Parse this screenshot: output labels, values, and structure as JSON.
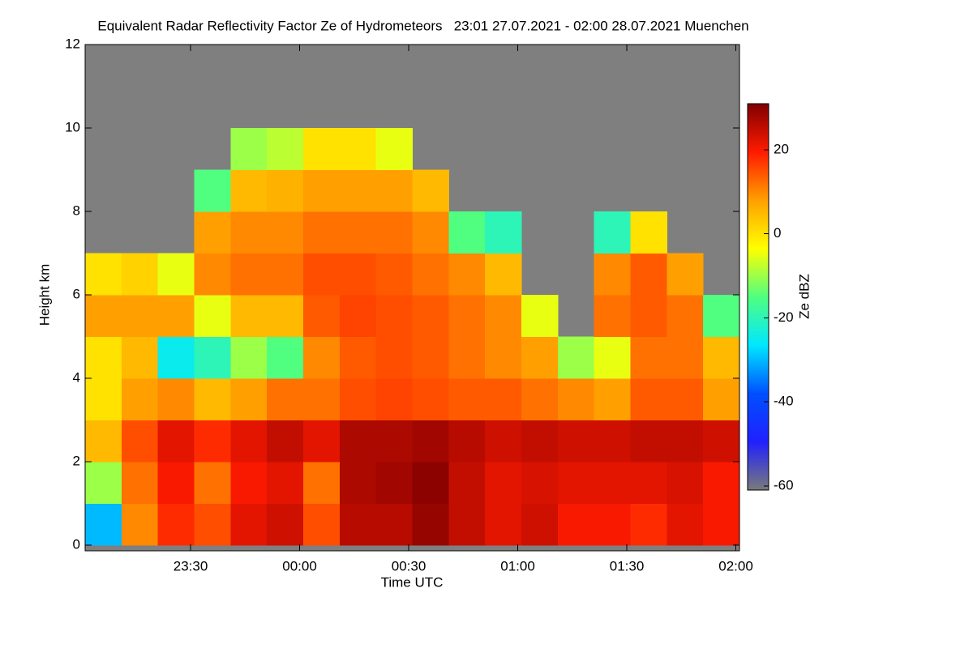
{
  "chart_data": {
    "type": "heatmap",
    "title": "Equivalent Radar Reflectivity Factor Ze of Hydrometeors   23:01 27.07.2021 - 02:00 28.07.2021 Muenchen",
    "x_label": "Time UTC",
    "y_label": "Height km",
    "colorbar_label": "Ze dBZ",
    "xlim": [
      1,
      181
    ],
    "xticks": [
      {
        "value": 30,
        "label": "23:30"
      },
      {
        "value": 60,
        "label": "00:00"
      },
      {
        "value": 90,
        "label": "00:30"
      },
      {
        "value": 120,
        "label": "01:00"
      },
      {
        "value": 150,
        "label": "01:30"
      },
      {
        "value": 180,
        "label": "02:00"
      }
    ],
    "ylim": [
      -0.14,
      12
    ],
    "yticks": [
      0,
      2,
      4,
      6,
      8,
      10,
      12
    ],
    "zlim": [
      -61,
      31
    ],
    "zticks": [
      -60,
      -40,
      -20,
      0,
      20
    ],
    "colormap": [
      "#7a7a7a",
      "#2020ff",
      "#0050ff",
      "#00e8ff",
      "#50ff80",
      "#ffff00",
      "#ffa000",
      "#ff1a00",
      "#800000"
    ],
    "background": "#7f7f7f",
    "x_bins": [
      1,
      11,
      21,
      31,
      41,
      51,
      61,
      71,
      81,
      91,
      101,
      111,
      121,
      131,
      141,
      151,
      161,
      171,
      181
    ],
    "y_bins": [
      0,
      1,
      2,
      3,
      4,
      5,
      6,
      7,
      8,
      9,
      10,
      11
    ],
    "values": [
      [
        -30,
        -10,
        5,
        0,
        0,
        8,
        0,
        null,
        null,
        null,
        null
      ],
      [
        10,
        12,
        15,
        8,
        5,
        8,
        2,
        null,
        null,
        null,
        null
      ],
      [
        18,
        20,
        22,
        10,
        -25,
        8,
        -5,
        null,
        null,
        null,
        null
      ],
      [
        15,
        12,
        18,
        5,
        -20,
        -5,
        10,
        8,
        -15,
        null,
        null
      ],
      [
        22,
        20,
        22,
        8,
        -10,
        5,
        12,
        10,
        5,
        -10,
        null
      ],
      [
        24,
        22,
        25,
        12,
        -15,
        5,
        12,
        10,
        6,
        -8,
        null
      ],
      [
        15,
        12,
        22,
        12,
        10,
        14,
        15,
        12,
        8,
        0,
        null
      ],
      [
        26,
        27,
        27,
        15,
        14,
        16,
        15,
        12,
        8,
        0,
        null
      ],
      [
        26,
        28,
        27,
        16,
        15,
        15,
        14,
        12,
        8,
        -5,
        null
      ],
      [
        29,
        30,
        28,
        15,
        14,
        14,
        12,
        10,
        5,
        null,
        null
      ],
      [
        25,
        25,
        26,
        14,
        12,
        12,
        10,
        -15,
        null,
        null,
        null
      ],
      [
        22,
        22,
        24,
        14,
        10,
        10,
        5,
        -20,
        null,
        null,
        null
      ],
      [
        24,
        23,
        25,
        12,
        8,
        -5,
        null,
        null,
        null,
        null,
        null
      ],
      [
        20,
        22,
        24,
        10,
        -10,
        null,
        null,
        null,
        null,
        null,
        null
      ],
      [
        20,
        22,
        24,
        8,
        -5,
        12,
        10,
        -20,
        null,
        null,
        null
      ],
      [
        18,
        22,
        25,
        14,
        12,
        14,
        14,
        0,
        null,
        null,
        null
      ],
      [
        22,
        23,
        25,
        14,
        12,
        12,
        8,
        null,
        null,
        null,
        null
      ],
      [
        20,
        20,
        24,
        8,
        5,
        -15,
        null,
        null,
        null,
        null,
        null
      ]
    ]
  }
}
